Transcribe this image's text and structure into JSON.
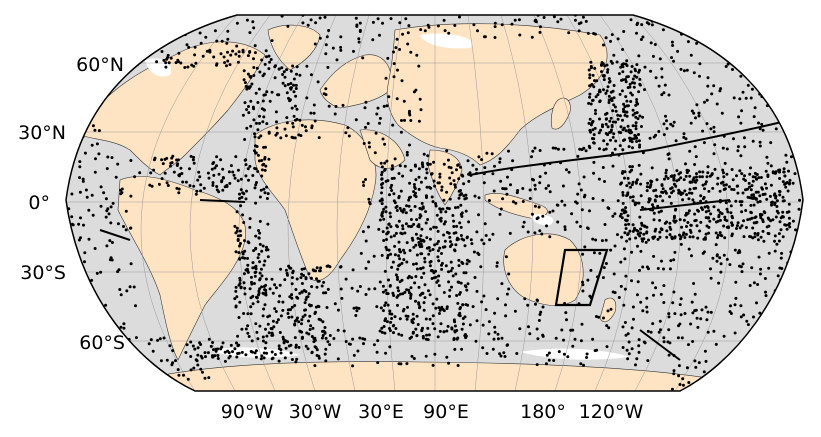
{
  "map": {
    "projection": "Robinson",
    "colors": {
      "ocean": "#dcdcdc",
      "land": "#ffe4c4",
      "ice": "#ffffff",
      "stations": "#000000",
      "graticule": "#999999",
      "box": "#000000"
    },
    "lat_labels": [
      "60°N",
      "30°N",
      "0°",
      "30°S",
      "60°S"
    ],
    "lon_labels": [
      "90°W",
      "30°W",
      "30°E",
      "90°E",
      "180°",
      "120°W"
    ],
    "highlight_box": {
      "label": "",
      "note": "rectangle drawn east of Australia"
    }
  }
}
